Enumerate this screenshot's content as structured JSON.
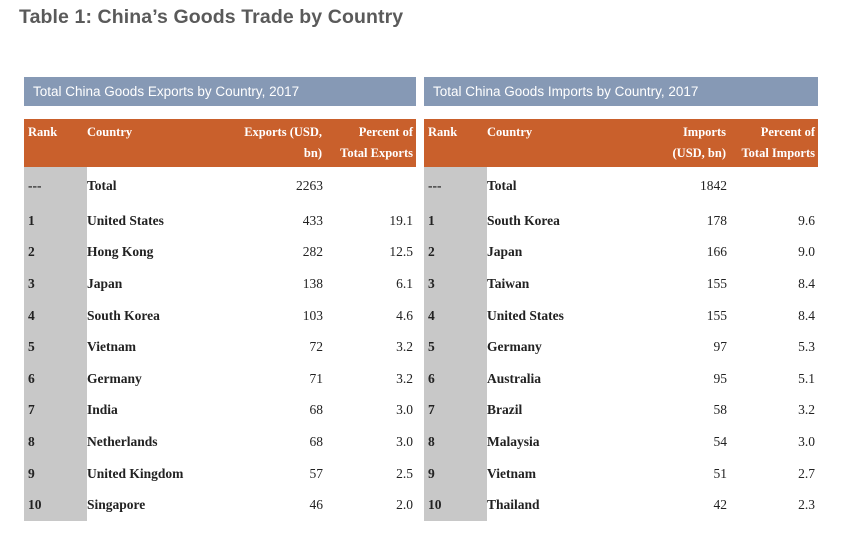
{
  "page_title": "Table 1: China’s Goods Trade by Country",
  "exports": {
    "banner": "Total China Goods Exports by Country, 2017",
    "headers": {
      "rank": "Rank",
      "country": "Country",
      "value_line1": "Exports (USD,",
      "value_line2": "bn)",
      "pct_line1": "Percent of",
      "pct_line2": "Total Exports"
    },
    "total": {
      "rank": "---",
      "country": "Total",
      "value": "2263",
      "pct": ""
    },
    "rows": [
      {
        "rank": "1",
        "country": "United States",
        "value": "433",
        "pct": "19.1"
      },
      {
        "rank": "2",
        "country": "Hong Kong",
        "value": "282",
        "pct": "12.5"
      },
      {
        "rank": "3",
        "country": "Japan",
        "value": "138",
        "pct": "6.1"
      },
      {
        "rank": "4",
        "country": "South Korea",
        "value": "103",
        "pct": "4.6"
      },
      {
        "rank": "5",
        "country": "Vietnam",
        "value": "72",
        "pct": "3.2"
      },
      {
        "rank": "6",
        "country": "Germany",
        "value": "71",
        "pct": "3.2"
      },
      {
        "rank": "7",
        "country": "India",
        "value": "68",
        "pct": "3.0"
      },
      {
        "rank": "8",
        "country": "Netherlands",
        "value": "68",
        "pct": "3.0"
      },
      {
        "rank": "9",
        "country": "United Kingdom",
        "value": "57",
        "pct": "2.5"
      },
      {
        "rank": "10",
        "country": "Singapore",
        "value": "46",
        "pct": "2.0"
      }
    ]
  },
  "imports": {
    "banner": "Total China Goods Imports by Country, 2017",
    "headers": {
      "rank": "Rank",
      "country": "Country",
      "value_line1": "Imports",
      "value_line2": "(USD, bn)",
      "pct_line1": "Percent of",
      "pct_line2": "Total Imports"
    },
    "total": {
      "rank": "---",
      "country": "Total",
      "value": "1842",
      "pct": ""
    },
    "rows": [
      {
        "rank": "1",
        "country": "South Korea",
        "value": "178",
        "pct": "9.6"
      },
      {
        "rank": "2",
        "country": "Japan",
        "value": "166",
        "pct": "9.0"
      },
      {
        "rank": "3",
        "country": "Taiwan",
        "value": "155",
        "pct": "8.4"
      },
      {
        "rank": "4",
        "country": "United States",
        "value": "155",
        "pct": "8.4"
      },
      {
        "rank": "5",
        "country": "Germany",
        "value": "97",
        "pct": "5.3"
      },
      {
        "rank": "6",
        "country": "Australia",
        "value": "95",
        "pct": "5.1"
      },
      {
        "rank": "7",
        "country": "Brazil",
        "value": "58",
        "pct": "3.2"
      },
      {
        "rank": "8",
        "country": "Malaysia",
        "value": "54",
        "pct": "3.0"
      },
      {
        "rank": "9",
        "country": "Vietnam",
        "value": "51",
        "pct": "2.7"
      },
      {
        "rank": "10",
        "country": "Thailand",
        "value": "42",
        "pct": "2.3"
      }
    ]
  },
  "colors": {
    "banner": "#8699b5",
    "header": "#c9602c",
    "rank_column": "#c8c8c8",
    "title": "#5a5a5a"
  }
}
